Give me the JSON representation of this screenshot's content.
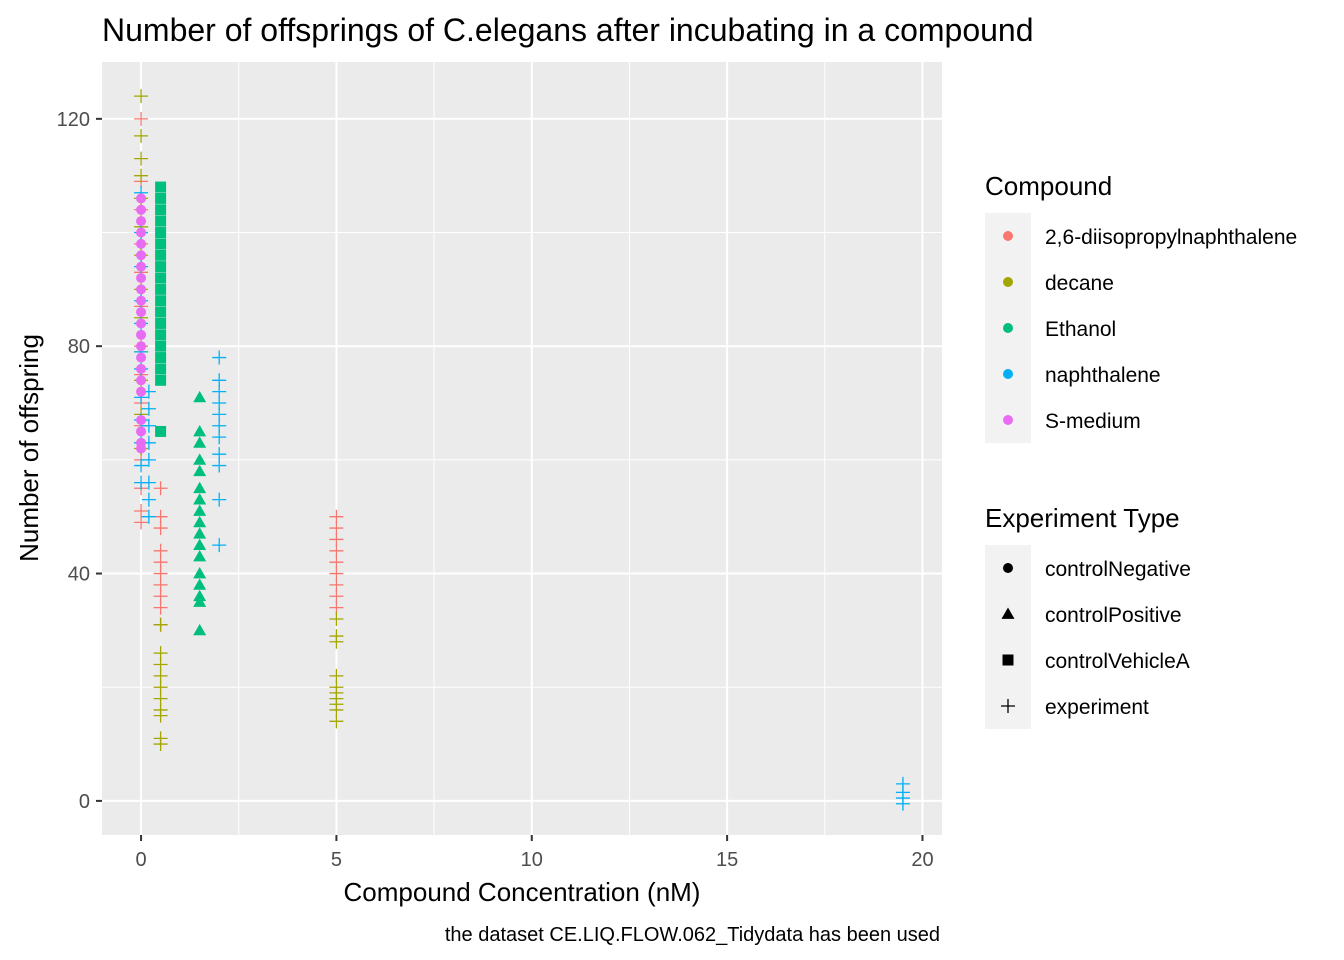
{
  "chart_data": {
    "type": "scatter",
    "title": "Number of offsprings of C.elegans after incubating in a compound",
    "xlabel": "Compound Concentration (nM)",
    "ylabel": "Number of offspring",
    "caption": "the dataset CE.LIQ.FLOW.062_Tidydata has been used",
    "xlim": [
      -1,
      20.5
    ],
    "ylim": [
      -6,
      130
    ],
    "x_ticks": [
      "0",
      "5",
      "10",
      "15",
      "20"
    ],
    "x_tick_values": [
      0,
      5,
      10,
      15,
      20
    ],
    "y_ticks": [
      "0",
      "40",
      "80",
      "120"
    ],
    "y_tick_values": [
      0,
      40,
      80,
      120
    ],
    "grid": true,
    "legend_position": "right",
    "legends": {
      "compound": {
        "title": "Compound",
        "entries": [
          {
            "label": "2,6-diisopropylnaphthalene",
            "color": "#F8766D"
          },
          {
            "label": "decane",
            "color": "#A3A500"
          },
          {
            "label": "Ethanol",
            "color": "#00BF7D"
          },
          {
            "label": "naphthalene",
            "color": "#00B0F6"
          },
          {
            "label": "S-medium",
            "color": "#E76BF3"
          }
        ]
      },
      "experiment_type": {
        "title": "Experiment Type",
        "entries": [
          {
            "label": "controlNegative",
            "shape": "circle"
          },
          {
            "label": "controlPositive",
            "shape": "triangle"
          },
          {
            "label": "controlVehicleA",
            "shape": "square"
          },
          {
            "label": "experiment",
            "shape": "plus"
          }
        ]
      }
    },
    "series": [
      {
        "compound": "2,6-diisopropylnaphthalene",
        "type": "experiment",
        "color": "#F8766D",
        "shape": "plus",
        "points": [
          [
            0,
            120
          ],
          [
            0,
            109
          ],
          [
            0,
            104
          ],
          [
            0,
            98
          ],
          [
            0,
            93
          ],
          [
            0,
            87
          ],
          [
            0,
            80
          ],
          [
            0,
            75
          ],
          [
            0,
            70
          ],
          [
            0,
            66
          ],
          [
            0,
            60
          ],
          [
            0,
            55
          ],
          [
            0,
            51
          ],
          [
            0,
            49
          ],
          [
            0.5,
            55
          ],
          [
            0.5,
            50
          ],
          [
            0.5,
            48
          ],
          [
            0.5,
            44
          ],
          [
            0.5,
            42
          ],
          [
            0.5,
            40
          ],
          [
            0.5,
            38
          ],
          [
            0.5,
            36
          ],
          [
            0.5,
            34
          ],
          [
            0.5,
            31
          ],
          [
            5,
            50
          ],
          [
            5,
            48
          ],
          [
            5,
            46
          ],
          [
            5,
            44
          ],
          [
            5,
            42
          ],
          [
            5,
            40
          ],
          [
            5,
            38
          ],
          [
            5,
            36
          ],
          [
            5,
            34
          ]
        ]
      },
      {
        "compound": "decane",
        "type": "experiment",
        "color": "#A3A500",
        "shape": "plus",
        "points": [
          [
            0,
            124
          ],
          [
            0,
            117
          ],
          [
            0,
            113
          ],
          [
            0,
            110
          ],
          [
            0,
            106
          ],
          [
            0,
            101
          ],
          [
            0,
            96
          ],
          [
            0,
            90
          ],
          [
            0,
            85
          ],
          [
            0,
            79
          ],
          [
            0,
            74
          ],
          [
            0,
            68
          ],
          [
            0,
            62
          ],
          [
            0.5,
            31
          ],
          [
            0.5,
            26
          ],
          [
            0.5,
            24
          ],
          [
            0.5,
            22
          ],
          [
            0.5,
            20
          ],
          [
            0.5,
            18
          ],
          [
            0.5,
            16
          ],
          [
            0.5,
            15
          ],
          [
            0.5,
            11
          ],
          [
            0.5,
            10
          ],
          [
            5,
            32
          ],
          [
            5,
            29
          ],
          [
            5,
            28
          ],
          [
            5,
            22
          ],
          [
            5,
            20
          ],
          [
            5,
            19
          ],
          [
            5,
            18
          ],
          [
            5,
            17
          ],
          [
            5,
            16
          ],
          [
            5,
            14
          ]
        ]
      },
      {
        "compound": "naphthalene",
        "type": "experiment",
        "color": "#00B0F6",
        "shape": "plus",
        "points": [
          [
            0,
            107
          ],
          [
            0,
            100
          ],
          [
            0,
            94
          ],
          [
            0,
            88
          ],
          [
            0,
            84
          ],
          [
            0,
            79
          ],
          [
            0,
            76
          ],
          [
            0,
            71
          ],
          [
            0,
            67
          ],
          [
            0,
            63
          ],
          [
            0,
            59
          ],
          [
            0,
            56
          ],
          [
            0.2,
            72
          ],
          [
            0.2,
            69
          ],
          [
            0.2,
            66
          ],
          [
            0.2,
            63
          ],
          [
            0.2,
            60
          ],
          [
            0.2,
            56
          ],
          [
            0.2,
            53
          ],
          [
            0.2,
            50
          ],
          [
            2,
            78
          ],
          [
            2,
            74
          ],
          [
            2,
            72
          ],
          [
            2,
            70
          ],
          [
            2,
            68
          ],
          [
            2,
            66
          ],
          [
            2,
            64
          ],
          [
            2,
            61
          ],
          [
            2,
            59
          ],
          [
            2,
            53
          ],
          [
            2,
            45
          ],
          [
            19.5,
            3
          ],
          [
            19.5,
            1.5
          ],
          [
            19.5,
            0.5
          ],
          [
            19.5,
            -0.5
          ]
        ]
      },
      {
        "compound": "Ethanol",
        "type": "controlPositive",
        "color": "#00BF7D",
        "shape": "triangle",
        "points": [
          [
            1.5,
            71
          ],
          [
            1.5,
            65
          ],
          [
            1.5,
            63
          ],
          [
            1.5,
            60
          ],
          [
            1.5,
            58
          ],
          [
            1.5,
            55
          ],
          [
            1.5,
            53
          ],
          [
            1.5,
            51
          ],
          [
            1.5,
            49
          ],
          [
            1.5,
            47
          ],
          [
            1.5,
            45
          ],
          [
            1.5,
            43
          ],
          [
            1.5,
            40
          ],
          [
            1.5,
            38
          ],
          [
            1.5,
            36
          ],
          [
            1.5,
            35
          ],
          [
            1.5,
            30
          ]
        ]
      },
      {
        "compound": "Ethanol",
        "type": "controlVehicleA",
        "color": "#00BF7D",
        "shape": "square",
        "points": [
          [
            0.5,
            108
          ],
          [
            0.5,
            106
          ],
          [
            0.5,
            104
          ],
          [
            0.5,
            102
          ],
          [
            0.5,
            100
          ],
          [
            0.5,
            98
          ],
          [
            0.5,
            96
          ],
          [
            0.5,
            94
          ],
          [
            0.5,
            92
          ],
          [
            0.5,
            90
          ],
          [
            0.5,
            88
          ],
          [
            0.5,
            86
          ],
          [
            0.5,
            84
          ],
          [
            0.5,
            82
          ],
          [
            0.5,
            80
          ],
          [
            0.5,
            78
          ],
          [
            0.5,
            76
          ],
          [
            0.5,
            74
          ],
          [
            0.5,
            65
          ]
        ]
      },
      {
        "compound": "S-medium",
        "type": "controlNegative",
        "color": "#E76BF3",
        "shape": "circle",
        "points": [
          [
            0,
            106
          ],
          [
            0,
            104
          ],
          [
            0,
            102
          ],
          [
            0,
            100
          ],
          [
            0,
            98
          ],
          [
            0,
            96
          ],
          [
            0,
            94
          ],
          [
            0,
            92
          ],
          [
            0,
            90
          ],
          [
            0,
            88
          ],
          [
            0,
            86
          ],
          [
            0,
            84
          ],
          [
            0,
            82
          ],
          [
            0,
            80
          ],
          [
            0,
            78
          ],
          [
            0,
            76
          ],
          [
            0,
            74
          ],
          [
            0,
            72
          ],
          [
            0,
            67
          ],
          [
            0,
            65
          ],
          [
            0,
            63
          ],
          [
            0,
            62
          ]
        ]
      }
    ]
  }
}
